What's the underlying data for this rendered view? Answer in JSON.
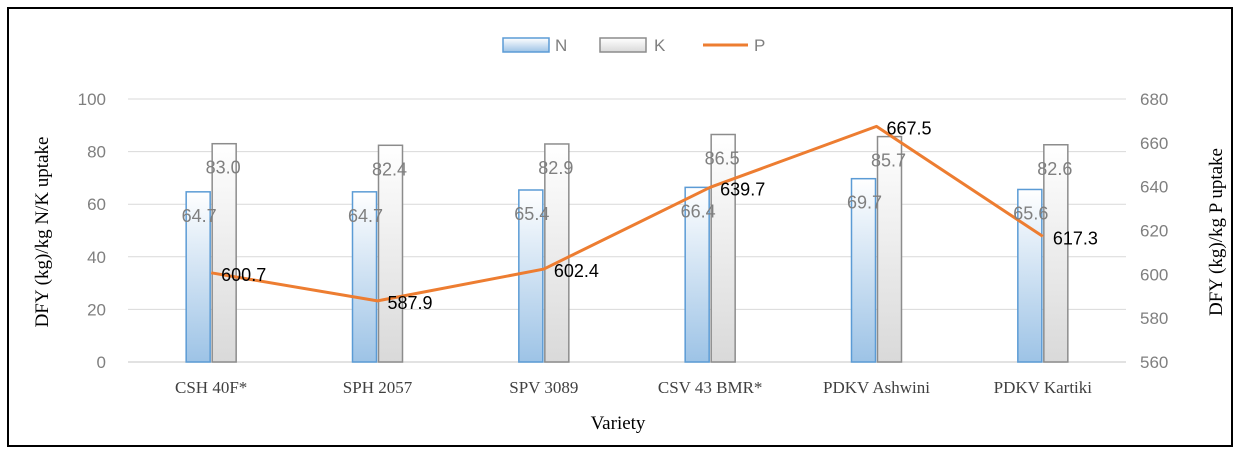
{
  "chart_data": {
    "type": "bar",
    "categories": [
      "CSH 40F*",
      "SPH 2057",
      "SPV 3089",
      "CSV 43 BMR*",
      "PDKV Ashwini",
      "PDKV Kartiki"
    ],
    "series": [
      {
        "name": "N",
        "type": "bar",
        "axis": "left",
        "values": [
          64.7,
          64.7,
          65.4,
          66.4,
          69.7,
          65.6
        ],
        "labels": [
          "64.7",
          "64.7",
          "65.4",
          "66.4",
          "69.7",
          "65.6"
        ]
      },
      {
        "name": "K",
        "type": "bar",
        "axis": "left",
        "values": [
          83.0,
          82.4,
          82.9,
          86.5,
          85.7,
          82.6
        ],
        "labels": [
          "83.0",
          "82.4",
          "82.9",
          "86.5",
          "85.7",
          "82.6"
        ]
      },
      {
        "name": "P",
        "type": "line",
        "axis": "right",
        "values": [
          600.7,
          587.9,
          602.4,
          639.7,
          667.5,
          617.3
        ],
        "labels": [
          "600.7",
          "587.9",
          "602.4",
          "639.7",
          "667.5",
          "617.3"
        ]
      }
    ],
    "xlabel": "Variety",
    "ylabel": "DFY (kg)/kg N/K uptake",
    "y2label": "DFY (kg)/kg P uptake",
    "ylim": [
      0,
      100
    ],
    "y2lim": [
      560,
      680
    ],
    "yticks": [
      "0",
      "20",
      "40",
      "60",
      "80",
      "100"
    ],
    "y2ticks": [
      "560",
      "580",
      "600",
      "620",
      "640",
      "660",
      "680"
    ],
    "grid": true,
    "legend_position": "top-center",
    "colors": {
      "N_fill_top": "#ffffff",
      "N_fill_bottom": "#9dc3e6",
      "N_stroke": "#5b9bd5",
      "K_fill_top": "#ffffff",
      "K_fill_bottom": "#d9d9d9",
      "K_stroke": "#8c8c8c",
      "P_line": "#ed7d31",
      "grid": "#d9d9d9"
    }
  }
}
